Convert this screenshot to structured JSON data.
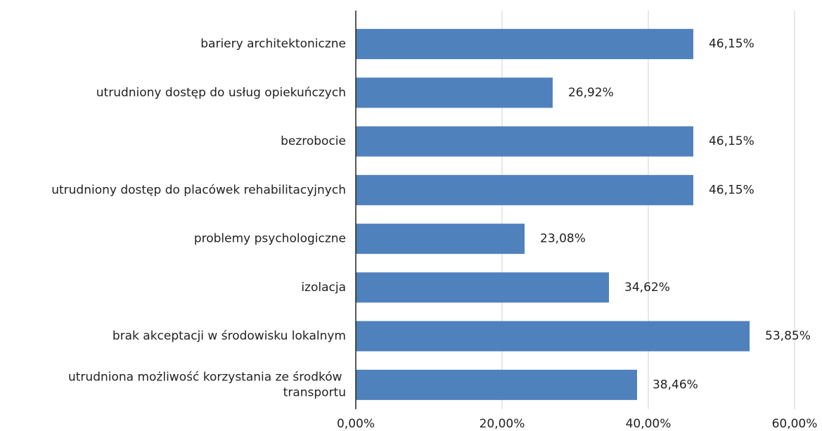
{
  "chart_data": {
    "type": "bar",
    "orientation": "horizontal",
    "categories": [
      "bariery architektoniczne",
      "utrudniony dostęp do usług opiekuńczych",
      "bezrobocie",
      "utrudniony dostęp do placówek rehabilitacyjnych",
      "problemy psychologiczne",
      "izolacja",
      "brak akceptacji w środowisku lokalnym",
      "utrudniona możliwość korzystania ze środków transportu"
    ],
    "values": [
      46.15,
      26.92,
      46.15,
      46.15,
      23.08,
      34.62,
      53.85,
      38.46
    ],
    "value_labels": [
      "46,15%",
      "26,92%",
      "46,15%",
      "46,15%",
      "23,08%",
      "34,62%",
      "53,85%",
      "38,46%"
    ],
    "color": "#4f81bd",
    "xlim": [
      0,
      60
    ],
    "xticks": [
      {
        "value": 0,
        "label": "0,00%"
      },
      {
        "value": 20,
        "label": "20,00%"
      },
      {
        "value": 40,
        "label": "40,00%"
      },
      {
        "value": 60,
        "label": "60,00%"
      }
    ],
    "grid": true
  }
}
